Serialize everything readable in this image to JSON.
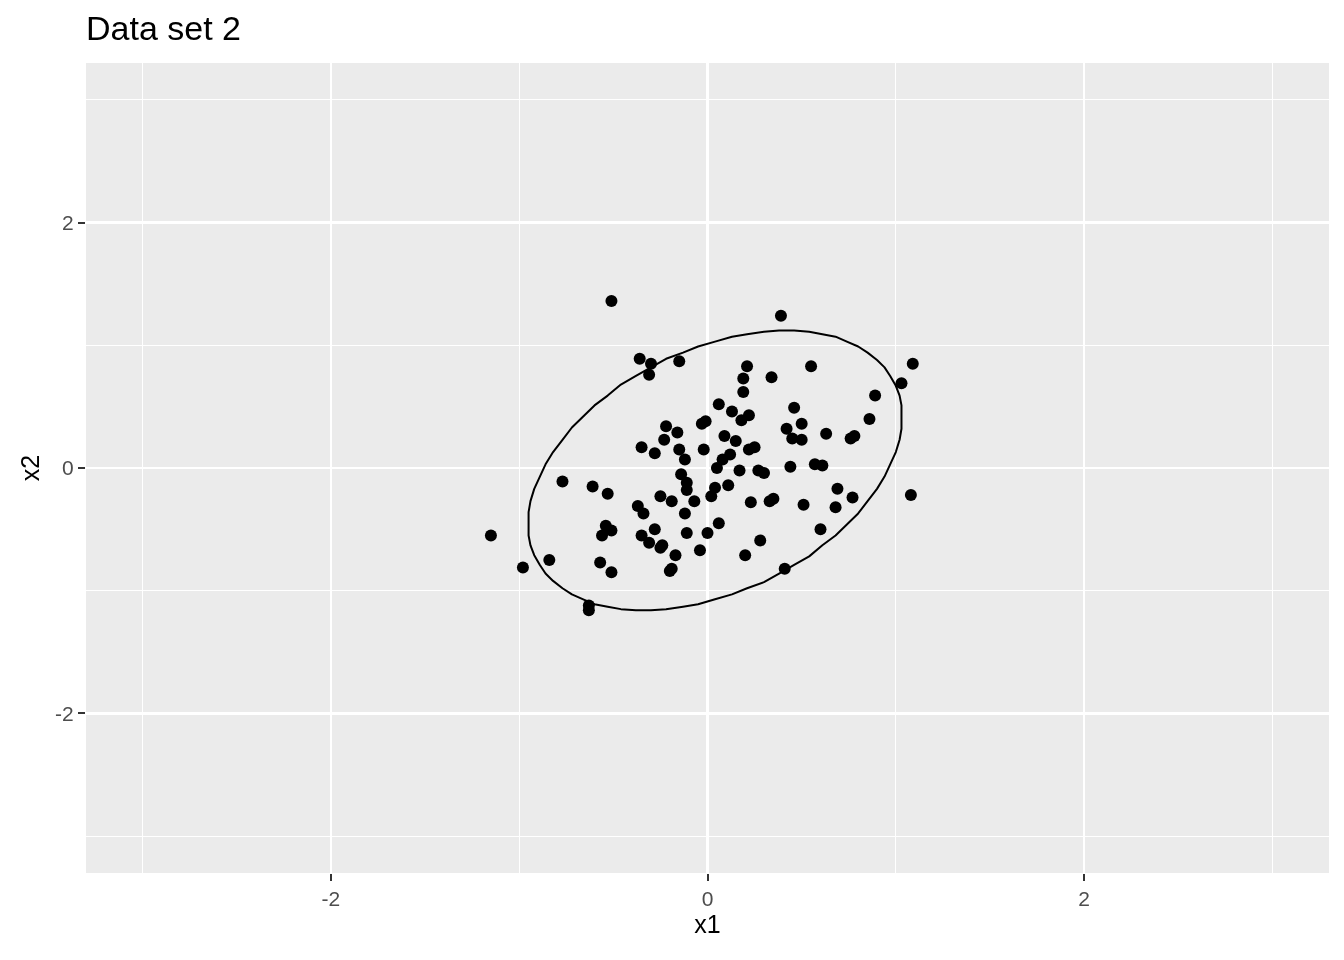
{
  "chart_data": {
    "type": "scatter",
    "title": "Data set 2",
    "xlabel": "x1",
    "ylabel": "x2",
    "xlim": [
      -3.3,
      3.3
    ],
    "ylim": [
      -3.3,
      3.3
    ],
    "xticks": [
      {
        "value": -3,
        "label": null
      },
      -2,
      {
        "value": -1,
        "label": null
      },
      0,
      {
        "value": 1,
        "label": null
      },
      2,
      {
        "value": 3,
        "label": null
      }
    ],
    "yticks": [
      {
        "value": -3,
        "label": null
      },
      -2,
      {
        "value": -1,
        "label": null
      },
      0,
      {
        "value": 1,
        "label": null
      },
      2,
      {
        "value": 3,
        "label": null
      }
    ],
    "grid": true,
    "marker": "circle",
    "series": [
      {
        "color": "#000000",
        "x": [
          -0.51,
          0.39,
          -0.36,
          -0.3,
          -0.31,
          -0.15,
          1.09,
          0.55,
          0.21,
          0.19,
          0.34,
          0.19,
          1.03,
          0.89,
          0.06,
          0.46,
          0.13,
          0.22,
          0.18,
          0.86,
          -0.01,
          -0.03,
          0.5,
          0.42,
          -0.22,
          -0.16,
          0.09,
          0.63,
          0.78,
          0.76,
          0.45,
          0.5,
          0.15,
          -0.23,
          -0.35,
          0.25,
          0.22,
          -0.02,
          -0.15,
          -0.28,
          -0.12,
          0.12,
          0.08,
          0.57,
          0.61,
          0.44,
          0.05,
          0.17,
          -0.14,
          0.27,
          0.3,
          -0.77,
          -0.61,
          -0.11,
          0.11,
          0.69,
          0.04,
          -0.11,
          -0.53,
          1.08,
          -0.25,
          -0.19,
          0.77,
          -0.07,
          0.02,
          0.23,
          0.35,
          0.33,
          0.51,
          -0.37,
          -0.34,
          -0.12,
          0.68,
          -0.54,
          -0.51,
          -0.28,
          0.6,
          -1.15,
          -0.56,
          -0.35,
          0.0,
          -0.11,
          -0.31,
          -0.24,
          -0.25,
          -0.04,
          -0.17,
          0.2,
          0.28,
          -0.84,
          -0.57,
          -0.19,
          -0.2,
          -0.51,
          -0.98,
          0.41,
          -0.63,
          -0.63,
          0.06
        ],
        "values": [
          1.36,
          1.24,
          0.89,
          0.85,
          0.76,
          0.87,
          0.85,
          0.83,
          0.83,
          0.73,
          0.74,
          0.62,
          0.69,
          0.59,
          0.52,
          0.49,
          0.46,
          0.43,
          0.39,
          0.4,
          0.38,
          0.36,
          0.36,
          0.32,
          0.34,
          0.29,
          0.26,
          0.28,
          0.26,
          0.24,
          0.24,
          0.23,
          0.22,
          0.23,
          0.17,
          0.17,
          0.15,
          0.15,
          0.15,
          0.12,
          0.07,
          0.11,
          0.07,
          0.03,
          0.02,
          0.01,
          0.0,
          -0.02,
          -0.05,
          -0.02,
          -0.04,
          -0.11,
          -0.15,
          -0.12,
          -0.14,
          -0.17,
          -0.16,
          -0.18,
          -0.21,
          -0.22,
          -0.23,
          -0.27,
          -0.24,
          -0.27,
          -0.23,
          -0.28,
          -0.25,
          -0.27,
          -0.3,
          -0.31,
          -0.37,
          -0.37,
          -0.32,
          -0.47,
          -0.51,
          -0.5,
          -0.5,
          -0.55,
          -0.55,
          -0.55,
          -0.53,
          -0.53,
          -0.61,
          -0.63,
          -0.65,
          -0.67,
          -0.71,
          -0.71,
          -0.59,
          -0.75,
          -0.77,
          -0.82,
          -0.84,
          -0.85,
          -0.81,
          -0.82,
          -1.12,
          -1.16,
          -0.45
        ]
      },
      {
        "type": "line",
        "color": "#000000",
        "marker": "none",
        "line_style": "solid",
        "x": [
          1.03,
          1.03,
          1.02,
          1.0,
          0.97,
          0.94,
          0.9,
          0.85,
          0.8,
          0.74,
          0.68,
          0.61,
          0.54,
          0.46,
          0.38,
          0.3,
          0.21,
          0.13,
          0.04,
          -0.05,
          -0.13,
          -0.22,
          -0.3,
          -0.38,
          -0.46,
          -0.53,
          -0.6,
          -0.66,
          -0.72,
          -0.77,
          -0.82,
          -0.86,
          -0.89,
          -0.92,
          -0.94,
          -0.95,
          -0.95,
          -0.95,
          -0.94,
          -0.92,
          -0.89,
          -0.86,
          -0.82,
          -0.77,
          -0.72,
          -0.66,
          -0.6,
          -0.53,
          -0.46,
          -0.38,
          -0.3,
          -0.22,
          -0.13,
          -0.05,
          0.04,
          0.13,
          0.21,
          0.3,
          0.38,
          0.46,
          0.54,
          0.61,
          0.68,
          0.74,
          0.8,
          0.85,
          0.9,
          0.94,
          0.97,
          1.0,
          1.02,
          1.03,
          1.03,
          1.03
        ],
        "values": [
          0.42,
          0.51,
          0.59,
          0.67,
          0.75,
          0.82,
          0.88,
          0.94,
          0.99,
          1.03,
          1.07,
          1.09,
          1.11,
          1.12,
          1.12,
          1.11,
          1.09,
          1.07,
          1.03,
          0.99,
          0.94,
          0.89,
          0.82,
          0.75,
          0.68,
          0.59,
          0.51,
          0.42,
          0.33,
          0.23,
          0.13,
          0.03,
          -0.07,
          -0.17,
          -0.27,
          -0.36,
          -0.46,
          -0.55,
          -0.63,
          -0.71,
          -0.79,
          -0.86,
          -0.92,
          -0.98,
          -1.03,
          -1.07,
          -1.11,
          -1.13,
          -1.15,
          -1.16,
          -1.16,
          -1.15,
          -1.13,
          -1.11,
          -1.07,
          -1.03,
          -0.98,
          -0.93,
          -0.86,
          -0.79,
          -0.72,
          -0.63,
          -0.55,
          -0.46,
          -0.37,
          -0.27,
          -0.17,
          -0.07,
          0.03,
          0.13,
          0.23,
          0.32,
          0.42,
          0.51
        ]
      }
    ]
  }
}
